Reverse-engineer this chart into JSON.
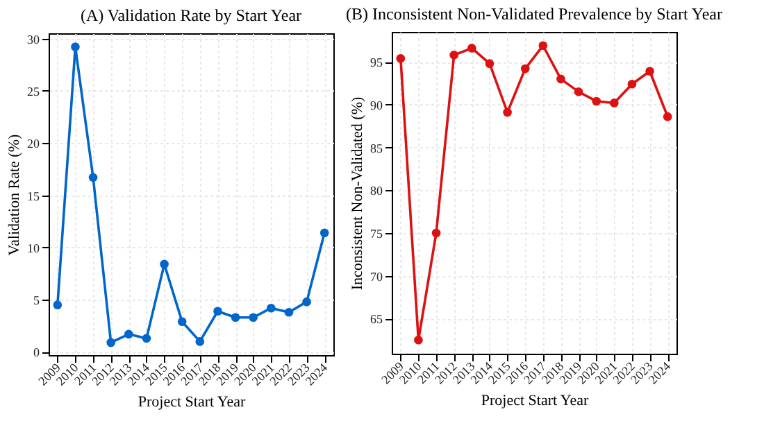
{
  "chart_data": [
    {
      "type": "line",
      "title": "(A) Validation Rate by Start Year",
      "xlabel": "Project Start Year",
      "ylabel": "Validation Rate (%)",
      "categories": [
        "2009",
        "2010",
        "2011",
        "2012",
        "2013",
        "2014",
        "2015",
        "2016",
        "2017",
        "2018",
        "2019",
        "2020",
        "2021",
        "2022",
        "2023",
        "2024"
      ],
      "series": [
        {
          "color": "#0066cc",
          "values": [
            4.5,
            29.2,
            16.7,
            0.9,
            1.7,
            1.3,
            8.4,
            2.9,
            1.0,
            3.9,
            3.3,
            3.3,
            4.2,
            3.8,
            4.8,
            11.4
          ]
        }
      ],
      "ylim": [
        -0.3,
        30.5
      ],
      "yticks": [
        0,
        5,
        10,
        15,
        20,
        25,
        30
      ],
      "grid": true,
      "marker": "circle",
      "line_style": "solid"
    },
    {
      "type": "line",
      "title": "(B) Inconsistent Non-Validated Prevalence by Start Year",
      "xlabel": "Project Start Year",
      "ylabel": "Inconsistent Non-Validated (%)",
      "categories": [
        "2009",
        "2010",
        "2011",
        "2012",
        "2013",
        "2014",
        "2015",
        "2016",
        "2017",
        "2018",
        "2019",
        "2020",
        "2021",
        "2022",
        "2023",
        "2024"
      ],
      "series": [
        {
          "color": "#dd1111",
          "values": [
            95.4,
            62.5,
            75.0,
            95.8,
            96.6,
            94.8,
            89.1,
            94.2,
            96.9,
            93.0,
            91.5,
            90.4,
            90.2,
            92.4,
            93.9,
            88.6
          ]
        }
      ],
      "ylim": [
        60.9,
        98.5
      ],
      "yticks": [
        65,
        70,
        75,
        80,
        85,
        90,
        95
      ],
      "grid": true,
      "marker": "circle",
      "line_style": "solid"
    }
  ]
}
